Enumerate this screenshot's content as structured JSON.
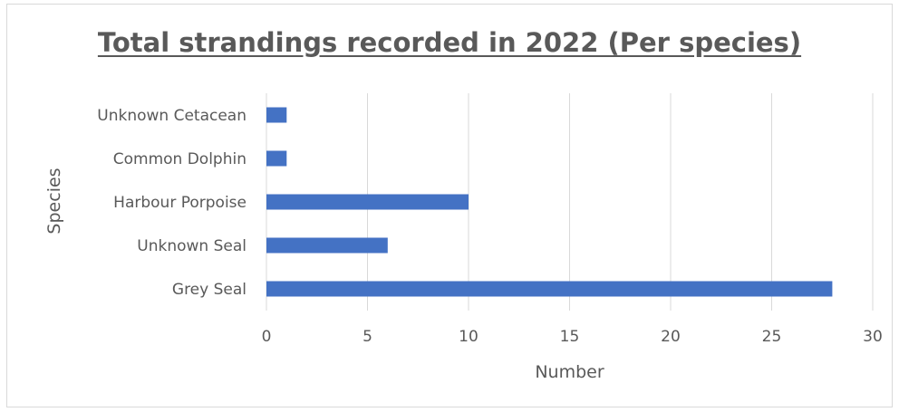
{
  "chart_data": {
    "type": "bar",
    "orientation": "horizontal",
    "title": "Total strandings recorded in 2022 (Per species)",
    "xlabel": "Number",
    "ylabel": "Species",
    "categories": [
      "Grey Seal",
      "Unknown Seal",
      "Harbour Porpoise",
      "Common Dolphin",
      "Unknown Cetacean"
    ],
    "values": [
      28,
      6,
      10,
      1,
      1
    ],
    "xlim": [
      0,
      30
    ],
    "xticks": [
      0,
      5,
      10,
      15,
      20,
      25,
      30
    ],
    "grid": true,
    "legend": "none",
    "bar_color": "#4472c4",
    "grid_color": "#d9d9d9"
  }
}
